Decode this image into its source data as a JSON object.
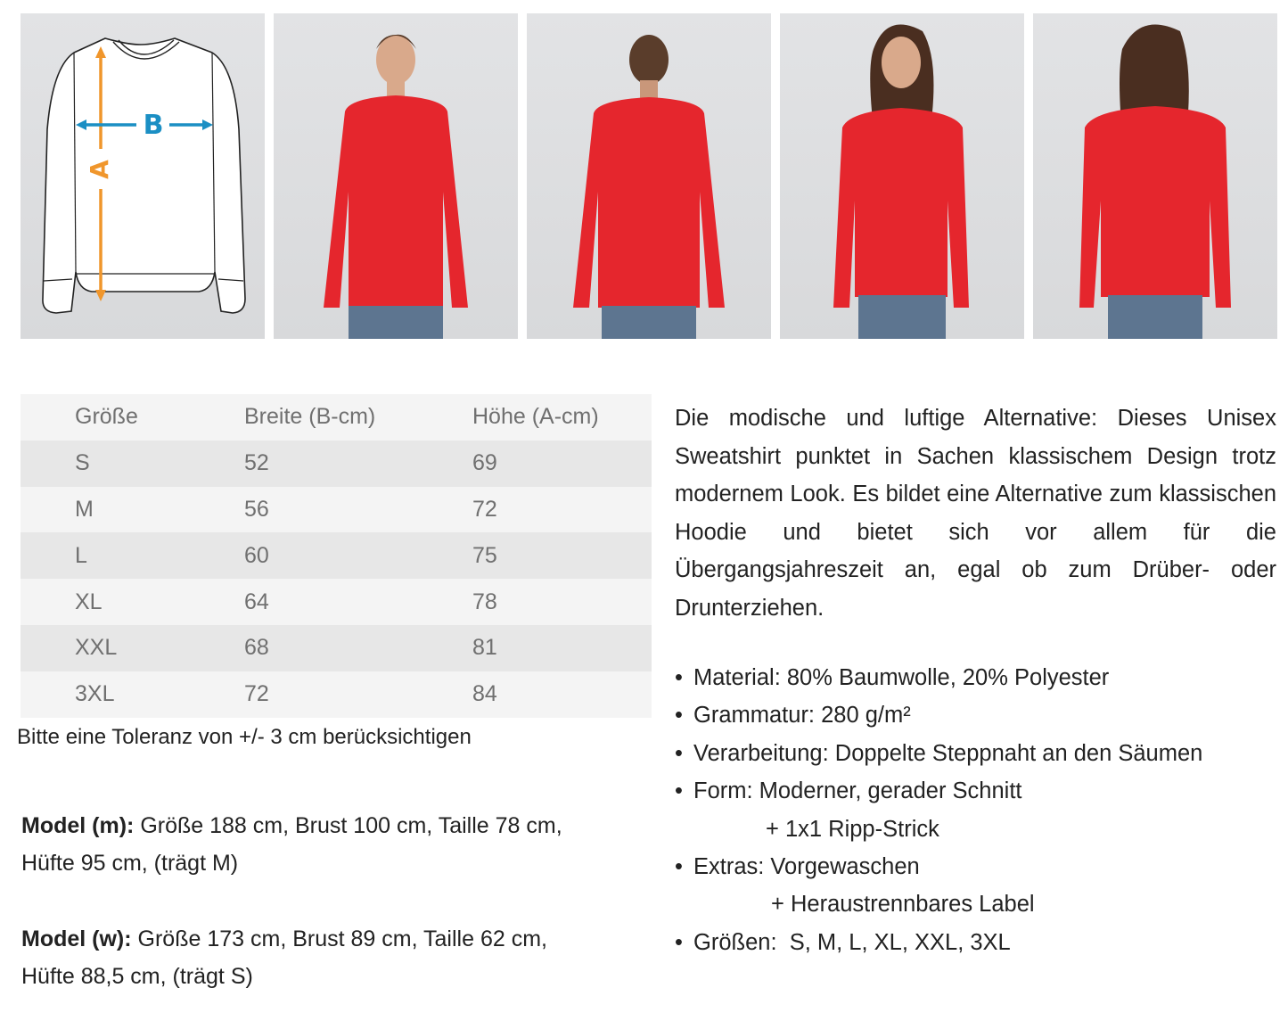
{
  "diagram": {
    "label_a": "A",
    "label_b": "B",
    "color_a": "#f0962c",
    "color_b": "#1b8fc4"
  },
  "photos": [
    {
      "view": "male-front"
    },
    {
      "view": "male-back"
    },
    {
      "view": "female-front"
    },
    {
      "view": "female-back"
    }
  ],
  "colors": {
    "sweatshirt": "#e5262d",
    "jeans": "#5d7590",
    "background": "#dcdddf"
  },
  "table": {
    "headers": [
      "Größe",
      "Breite (B-cm)",
      "Höhe (A-cm)"
    ],
    "rows": [
      [
        "S",
        "52",
        "69"
      ],
      [
        "M",
        "56",
        "72"
      ],
      [
        "L",
        "60",
        "75"
      ],
      [
        "XL",
        "64",
        "78"
      ],
      [
        "XXL",
        "68",
        "81"
      ],
      [
        "3XL",
        "72",
        "84"
      ]
    ]
  },
  "tolerance": "Bitte eine Toleranz von +/- 3 cm berücksichtigen",
  "models": [
    {
      "label": "Model (m):",
      "line1": " Größe 188 cm, Brust 100 cm, Taille 78 cm,",
      "line2": "Hüfte 95 cm, (trägt M)"
    },
    {
      "label": "Model (w):",
      "line1": " Größe 173 cm, Brust 89 cm, Taille 62 cm,",
      "line2": "Hüfte 88,5 cm, (trägt S)"
    }
  ],
  "description": "Die modische und luftige Alternative: Dieses Unisex Sweatshirt punktet in Sachen klassischem Design trotz modernem Look. Es bildet eine Alternative zum klassischen Hoodie und bietet sich vor allem für die Übergangsjahreszeit an, egal ob zum Drüber- oder Drunterziehen.",
  "features": [
    "Material: 80% Baumwolle, 20% Polyester",
    "Grammatur: 280 g/m²",
    "Verarbeitung: Doppelte Steppnaht an den Säumen",
    "Form: Moderner, gerader Schnitt",
    "+ 1x1 Ripp-Strick",
    "Extras: Vorgewaschen",
    "+ Heraustrennbares Label",
    "Größen:  S, M, L, XL, XXL, 3XL"
  ]
}
